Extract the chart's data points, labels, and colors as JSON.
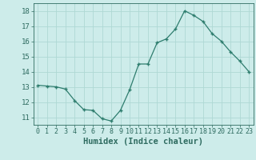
{
  "x": [
    0,
    1,
    2,
    3,
    4,
    5,
    6,
    7,
    8,
    9,
    10,
    11,
    12,
    13,
    14,
    15,
    16,
    17,
    18,
    19,
    20,
    21,
    22,
    23
  ],
  "y": [
    13.1,
    13.05,
    13.0,
    12.85,
    12.1,
    11.5,
    11.45,
    10.9,
    10.75,
    11.45,
    12.8,
    14.5,
    14.5,
    15.9,
    16.15,
    16.8,
    18.0,
    17.7,
    17.3,
    16.5,
    16.0,
    15.3,
    14.7,
    14.0
  ],
  "line_color": "#2e7d6e",
  "marker": "+",
  "bg_color": "#cdecea",
  "grid_color": "#afd8d4",
  "tick_color": "#2e6b60",
  "label_color": "#2e6b60",
  "xlabel": "Humidex (Indice chaleur)",
  "ylim": [
    10.5,
    18.5
  ],
  "yticks": [
    11,
    12,
    13,
    14,
    15,
    16,
    17,
    18
  ],
  "xticks": [
    0,
    1,
    2,
    3,
    4,
    5,
    6,
    7,
    8,
    9,
    10,
    11,
    12,
    13,
    14,
    15,
    16,
    17,
    18,
    19,
    20,
    21,
    22,
    23
  ],
  "xlabel_fontsize": 7.5,
  "tick_fontsize": 6.0,
  "ytick_fontsize": 6.5
}
